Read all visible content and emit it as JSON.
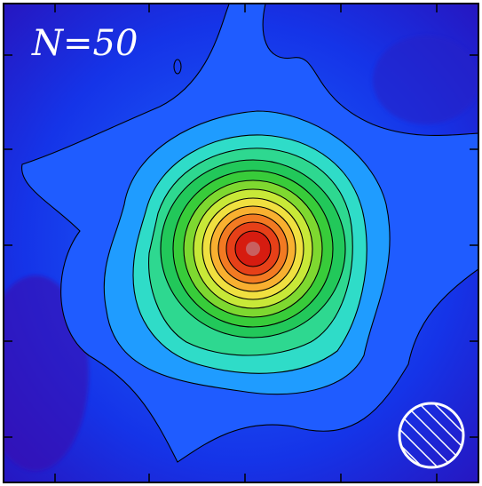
{
  "panel": {
    "label": "N=50"
  }
}
